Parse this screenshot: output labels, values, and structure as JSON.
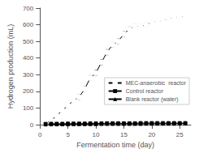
{
  "chart_data": {
    "type": "line",
    "xlabel": "Fermentation time (day)",
    "ylabel": "Hydrogen production (mL)",
    "xlim": [
      0,
      27
    ],
    "ylim": [
      0,
      700
    ],
    "xticks": [
      0,
      5,
      10,
      15,
      20,
      25
    ],
    "yticks": [
      0,
      100,
      200,
      300,
      400,
      500,
      600,
      700
    ],
    "grid": false,
    "legend": "lower right",
    "x": [
      1,
      2,
      3,
      4,
      5,
      6,
      7,
      8,
      9,
      10,
      11,
      12,
      13,
      14,
      15,
      16,
      17,
      18,
      19,
      20,
      21,
      22,
      23,
      24,
      25,
      26
    ],
    "series": [
      {
        "name": "MEC-anaerobic  reactor",
        "color": "#000000",
        "marker": "open_circle",
        "values": [
          8,
          25,
          55,
          85,
          115,
          145,
          165,
          215,
          280,
          310,
          375,
          435,
          480,
          500,
          545,
          575,
          590,
          590,
          600,
          615,
          620,
          625,
          635,
          645,
          645,
          650
        ],
        "yerr": [
          4,
          7,
          10,
          10,
          12,
          12,
          14,
          14,
          15,
          16,
          16,
          16,
          14,
          15,
          15,
          13,
          13,
          12,
          12,
          11,
          10,
          10,
          10,
          9,
          10,
          10
        ]
      },
      {
        "name": "Control reactor",
        "color": "#000000",
        "marker": "square",
        "values": [
          4,
          5,
          5,
          5,
          6,
          6,
          6,
          6,
          7,
          7,
          7,
          8,
          8,
          8,
          8,
          8,
          8,
          9,
          9,
          9,
          9,
          9,
          9,
          9,
          9,
          9
        ],
        "yerr": [
          2,
          2,
          2,
          2,
          2,
          2,
          2,
          2,
          2,
          2,
          2,
          2,
          2,
          2,
          2,
          2,
          2,
          2,
          2,
          2,
          2,
          2,
          2,
          2,
          2,
          2
        ]
      },
      {
        "name": "Blank reactor (water)",
        "color": "#000000",
        "marker": "triangle",
        "values": [
          2,
          3,
          3,
          3,
          3,
          4,
          4,
          4,
          4,
          4,
          5,
          5,
          5,
          5,
          5,
          5,
          5,
          5,
          6,
          6,
          6,
          6,
          6,
          6,
          7,
          7
        ],
        "yerr": [
          1,
          1,
          1,
          1,
          1,
          1,
          1,
          1,
          1,
          1,
          1,
          1,
          1,
          1,
          1,
          1,
          1,
          1,
          1,
          1,
          1,
          1,
          1,
          1,
          1,
          1
        ]
      }
    ]
  }
}
